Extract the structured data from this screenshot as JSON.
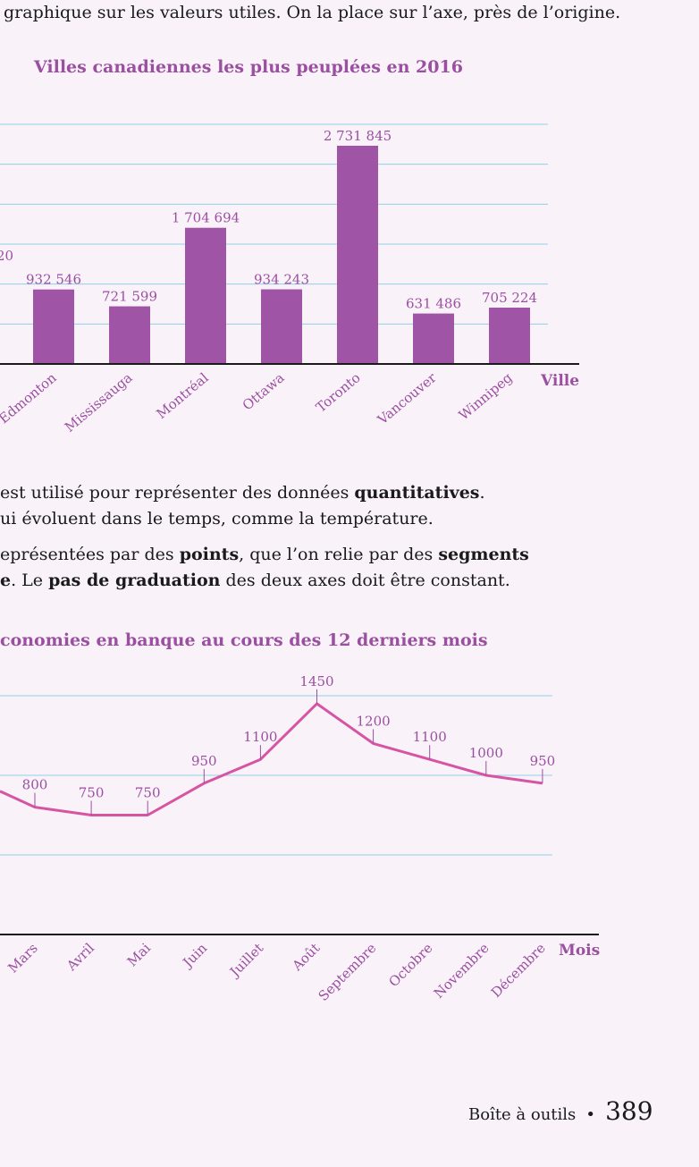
{
  "intro_line": "graphique sur les valeurs utiles. On la place sur l’axe, près de l’origine.",
  "bar_chart": {
    "title": "Villes canadiennes les plus peuplées en 2016",
    "xlabel": "Ville",
    "partial_label": "20",
    "bars": [
      {
        "category": "Edmonton",
        "value": 932546,
        "label": "932 546"
      },
      {
        "category": "Mississauga",
        "value": 721599,
        "label": "721 599"
      },
      {
        "category": "Montréal",
        "value": 1704694,
        "label": "1 704 694"
      },
      {
        "category": "Ottawa",
        "value": 934243,
        "label": "934 243"
      },
      {
        "category": "Toronto",
        "value": 2731845,
        "label": "2 731 845"
      },
      {
        "category": "Vancouver",
        "value": 631486,
        "label": "631 486"
      },
      {
        "category": "Winnipeg",
        "value": 705224,
        "label": "705 224"
      }
    ],
    "ylim": [
      0,
      3000000
    ],
    "color": "#a054a6"
  },
  "paragraph1": {
    "line1_a": "est utilisé pour représenter des données ",
    "line1_b": "quantitatives",
    "line1_c": ".",
    "line2": "ui évoluent dans le temps, comme la température."
  },
  "paragraph2": {
    "line1_a": "eprésentées par des ",
    "line1_b": "points",
    "line1_c": ", que l’on relie par des ",
    "line1_d": "segments",
    "line2_a": "e",
    "line2_b": ". Le ",
    "line2_c": "pas de graduation",
    "line2_d": " des deux axes doit être constant."
  },
  "line_chart": {
    "title": "conomies en banque au cours des 12 derniers mois",
    "xlabel": "Mois",
    "months": [
      "Mars",
      "Avril",
      "Mai",
      "Juin",
      "Juillet",
      "Août",
      "Septembre",
      "Octobre",
      "Novembre",
      "Décembre"
    ],
    "values": [
      800,
      750,
      750,
      950,
      1100,
      1450,
      1200,
      1100,
      1000,
      950
    ],
    "ylim": [
      0,
      1500
    ],
    "color": "#d655a3"
  },
  "footer": {
    "label": "Boîte à outils",
    "bullet": "•",
    "page": "389"
  },
  "colors": {
    "accent": "#9b4fa1",
    "grid": "#8fd0e8",
    "axis": "#1a1a1a"
  }
}
